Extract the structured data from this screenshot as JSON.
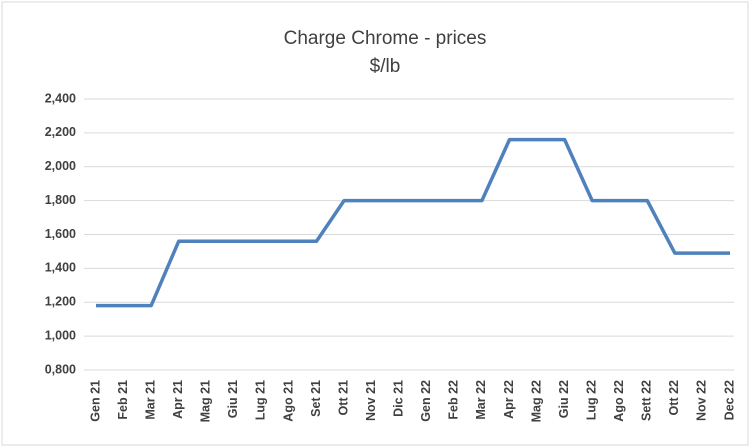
{
  "chart_data": {
    "type": "line",
    "title": "Charge Chrome - prices",
    "subtitle": "$/lb",
    "categories": [
      "Gen 21",
      "Feb 21",
      "Mar 21",
      "Apr 21",
      "Mag 21",
      "Giu 21",
      "Lug 21",
      "Ago 21",
      "Set 21",
      "Ott 21",
      "Nov 21",
      "Dic 21",
      "Gen 22",
      "Feb 22",
      "Mar 22",
      "Apr 22",
      "Mag 22",
      "Giu 22",
      "Lug 22",
      "Ago 22",
      "Sett 22",
      "Ott 22",
      "Nov 22",
      "Dec 22"
    ],
    "series": [
      {
        "name": "Charge Chrome",
        "color": "#4f81bd",
        "values": [
          1.18,
          1.18,
          1.18,
          1.56,
          1.56,
          1.56,
          1.56,
          1.56,
          1.56,
          1.8,
          1.8,
          1.8,
          1.8,
          1.8,
          1.8,
          2.16,
          2.16,
          2.16,
          1.8,
          1.8,
          1.8,
          1.49,
          1.49,
          1.49
        ]
      }
    ],
    "ylim": [
      0.8,
      2.4
    ],
    "yticks": [
      {
        "value": 0.8,
        "label": "0,800"
      },
      {
        "value": 1.0,
        "label": "1,000"
      },
      {
        "value": 1.2,
        "label": "1,200"
      },
      {
        "value": 1.4,
        "label": "1,400"
      },
      {
        "value": 1.6,
        "label": "1,600"
      },
      {
        "value": 1.8,
        "label": "1,800"
      },
      {
        "value": 2.0,
        "label": "2,000"
      },
      {
        "value": 2.2,
        "label": "2,200"
      },
      {
        "value": 2.4,
        "label": "2,400"
      }
    ],
    "grid": true
  }
}
